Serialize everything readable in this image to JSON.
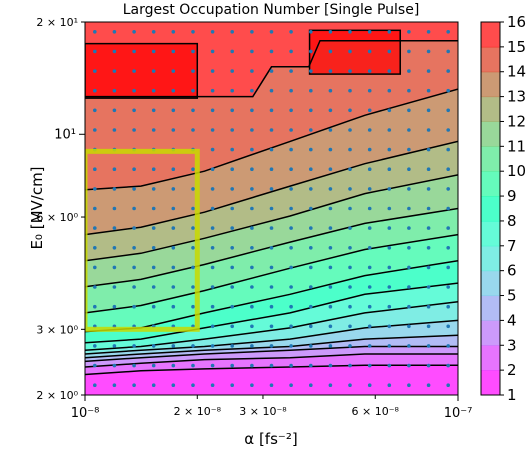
{
  "chart_data": {
    "type": "heatmap",
    "subtype": "filled-contour",
    "title": "Largest Occupation Number [Single Pulse]",
    "xlabel": "α [fs⁻²]",
    "ylabel": "E₀ [MV/cm]",
    "xscale": "log",
    "yscale": "log",
    "xlim": [
      1e-08,
      1e-07
    ],
    "ylim": [
      2,
      20
    ],
    "x_ticks": [
      {
        "value": 1e-08,
        "label": "10⁻⁸",
        "major": true
      },
      {
        "value": 2e-08,
        "label": "2 × 10⁻⁸",
        "major": false
      },
      {
        "value": 3e-08,
        "label": "3 × 10⁻⁸",
        "major": false
      },
      {
        "value": 6e-08,
        "label": "6 × 10⁻⁸",
        "major": false
      },
      {
        "value": 1e-07,
        "label": "10⁻⁷",
        "major": true
      }
    ],
    "y_ticks": [
      {
        "value": 2,
        "label": "2 × 10⁰",
        "major": false
      },
      {
        "value": 3,
        "label": "3 × 10⁰",
        "major": false
      },
      {
        "value": 6,
        "label": "6 × 10⁰",
        "major": false
      },
      {
        "value": 10,
        "label": "10¹",
        "major": true
      },
      {
        "value": 20,
        "label": "2 × 10¹",
        "major": false
      }
    ],
    "colorbar": {
      "levels": [
        1,
        2,
        3,
        4,
        5,
        6,
        7,
        8,
        9,
        10,
        11,
        12,
        13,
        14,
        15,
        16
      ],
      "colormap": "rainbow",
      "alpha": 0.7
    },
    "contour_levels": [
      {
        "level": 15,
        "pts": [
          [
            0.0,
            0.8
          ],
          [
            0.45,
            0.8
          ],
          [
            0.5,
            0.88
          ],
          [
            0.6,
            0.88
          ],
          [
            0.63,
            0.95
          ],
          [
            1.0,
            0.95
          ]
        ]
      },
      {
        "level": 14,
        "pts": [
          [
            0.0,
            0.55
          ],
          [
            0.15,
            0.56
          ],
          [
            0.32,
            0.6
          ],
          [
            0.55,
            0.68
          ],
          [
            0.75,
            0.75
          ],
          [
            1.0,
            0.82
          ]
        ]
      },
      {
        "level": 13,
        "pts": [
          [
            0.0,
            0.43
          ],
          [
            0.15,
            0.45
          ],
          [
            0.32,
            0.49
          ],
          [
            0.55,
            0.56
          ],
          [
            0.75,
            0.62
          ],
          [
            1.0,
            0.68
          ]
        ]
      },
      {
        "level": 12,
        "pts": [
          [
            0.0,
            0.36
          ],
          [
            0.15,
            0.38
          ],
          [
            0.32,
            0.42
          ],
          [
            0.55,
            0.48
          ],
          [
            0.75,
            0.54
          ],
          [
            1.0,
            0.59
          ]
        ]
      },
      {
        "level": 11,
        "pts": [
          [
            0.0,
            0.29
          ],
          [
            0.15,
            0.31
          ],
          [
            0.32,
            0.35
          ],
          [
            0.55,
            0.41
          ],
          [
            0.75,
            0.46
          ],
          [
            1.0,
            0.5
          ]
        ]
      },
      {
        "level": 10,
        "pts": [
          [
            0.0,
            0.22
          ],
          [
            0.15,
            0.24
          ],
          [
            0.32,
            0.28
          ],
          [
            0.55,
            0.34
          ],
          [
            0.75,
            0.39
          ],
          [
            1.0,
            0.43
          ]
        ]
      },
      {
        "level": 9,
        "pts": [
          [
            0.0,
            0.17
          ],
          [
            0.15,
            0.18
          ],
          [
            0.32,
            0.22
          ],
          [
            0.55,
            0.27
          ],
          [
            0.75,
            0.32
          ],
          [
            1.0,
            0.36
          ]
        ]
      },
      {
        "level": 8,
        "pts": [
          [
            0.0,
            0.14
          ],
          [
            0.15,
            0.15
          ],
          [
            0.32,
            0.18
          ],
          [
            0.55,
            0.22
          ],
          [
            0.75,
            0.27
          ],
          [
            1.0,
            0.3
          ]
        ]
      },
      {
        "level": 7,
        "pts": [
          [
            0.0,
            0.12
          ],
          [
            0.15,
            0.13
          ],
          [
            0.32,
            0.15
          ],
          [
            0.55,
            0.18
          ],
          [
            0.75,
            0.22
          ],
          [
            1.0,
            0.25
          ]
        ]
      },
      {
        "level": 6,
        "pts": [
          [
            0.0,
            0.11
          ],
          [
            0.15,
            0.12
          ],
          [
            0.32,
            0.13
          ],
          [
            0.55,
            0.15
          ],
          [
            0.75,
            0.18
          ],
          [
            1.0,
            0.2
          ]
        ]
      },
      {
        "level": 5,
        "pts": [
          [
            0.0,
            0.1
          ],
          [
            0.15,
            0.11
          ],
          [
            0.32,
            0.12
          ],
          [
            0.55,
            0.13
          ],
          [
            0.75,
            0.15
          ],
          [
            1.0,
            0.16
          ]
        ]
      },
      {
        "level": 4,
        "pts": [
          [
            0.0,
            0.09
          ],
          [
            0.15,
            0.1
          ],
          [
            0.32,
            0.11
          ],
          [
            0.55,
            0.12
          ],
          [
            0.75,
            0.13
          ],
          [
            1.0,
            0.13
          ]
        ]
      },
      {
        "level": 3,
        "pts": [
          [
            0.0,
            0.075
          ],
          [
            0.15,
            0.085
          ],
          [
            0.32,
            0.095
          ],
          [
            0.55,
            0.1
          ],
          [
            0.75,
            0.11
          ],
          [
            1.0,
            0.11
          ]
        ]
      },
      {
        "level": 2,
        "pts": [
          [
            0.0,
            0.055
          ],
          [
            0.15,
            0.065
          ],
          [
            0.32,
            0.07
          ],
          [
            0.55,
            0.075
          ],
          [
            0.75,
            0.08
          ],
          [
            1.0,
            0.08
          ]
        ]
      }
    ],
    "regions": [
      {
        "name": "level-16-region-left",
        "level": 16,
        "x": [
          1e-08,
          2e-08
        ],
        "y": [
          12.5,
          17.5
        ]
      },
      {
        "name": "level-16-region-right",
        "level": 16,
        "x": [
          4e-08,
          7e-08
        ],
        "y": [
          14.5,
          19.0
        ]
      }
    ],
    "highlight_box": {
      "x": [
        1e-08,
        2e-08
      ],
      "y": [
        3,
        9
      ],
      "color": "#c8d900"
    },
    "sample_grid": {
      "nx": 19,
      "ny": 19
    },
    "grid": false,
    "legend": "colorbar-right"
  }
}
